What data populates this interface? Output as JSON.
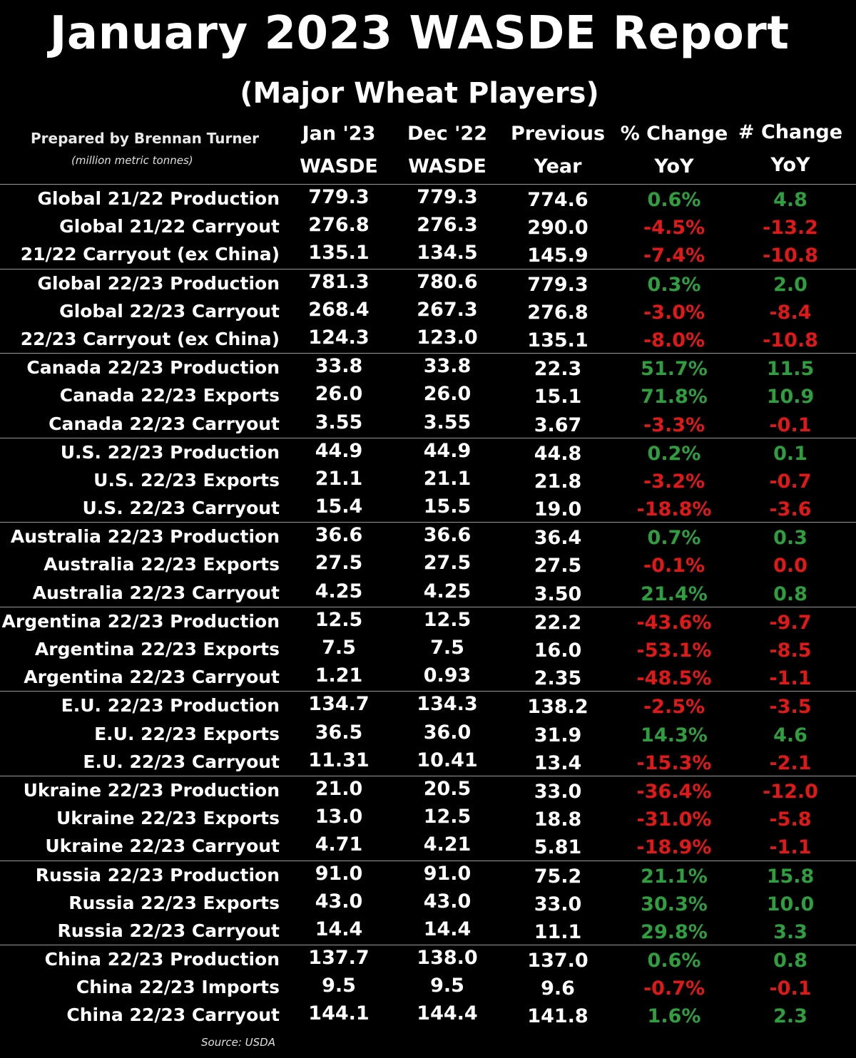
{
  "title": "January 2023 WASDE Report",
  "subtitle": "(Major Wheat Players)",
  "prepared_by": "Prepared by Brennan Turner",
  "units": "(million metric tonnes)",
  "columns": [
    {
      "line1": "Jan '23",
      "line2": "WASDE"
    },
    {
      "line1": "Dec '22",
      "line2": "WASDE"
    },
    {
      "line1": "Previous",
      "line2": "Year"
    },
    {
      "line1": "% Change",
      "line2": "YoY"
    },
    {
      "line1": "# Change",
      "line2": "YoY"
    }
  ],
  "colors": {
    "positive": "#2e9e3e",
    "negative": "#e01818"
  },
  "groups": [
    {
      "rows": [
        {
          "label": "Global 21/22 Production",
          "jan": "779.3",
          "dec": "779.3",
          "prev": "774.6",
          "pct": "0.6%",
          "num": "4.8"
        },
        {
          "label": "Global 21/22 Carryout",
          "jan": "276.8",
          "dec": "276.3",
          "prev": "290.0",
          "pct": "-4.5%",
          "num": "-13.2"
        },
        {
          "label": "21/22 Carryout (ex China)",
          "jan": "135.1",
          "dec": "134.5",
          "prev": "145.9",
          "pct": "-7.4%",
          "num": "-10.8"
        }
      ]
    },
    {
      "rows": [
        {
          "label": "Global 22/23 Production",
          "jan": "781.3",
          "dec": "780.6",
          "prev": "779.3",
          "pct": "0.3%",
          "num": "2.0"
        },
        {
          "label": "Global 22/23 Carryout",
          "jan": "268.4",
          "dec": "267.3",
          "prev": "276.8",
          "pct": "-3.0%",
          "num": "-8.4"
        },
        {
          "label": "22/23 Carryout (ex China)",
          "jan": "124.3",
          "dec": "123.0",
          "prev": "135.1",
          "pct": "-8.0%",
          "num": "-10.8"
        }
      ]
    },
    {
      "rows": [
        {
          "label": "Canada 22/23 Production",
          "jan": "33.8",
          "dec": "33.8",
          "prev": "22.3",
          "pct": "51.7%",
          "num": "11.5"
        },
        {
          "label": "Canada 22/23 Exports",
          "jan": "26.0",
          "dec": "26.0",
          "prev": "15.1",
          "pct": "71.8%",
          "num": "10.9"
        },
        {
          "label": "Canada 22/23 Carryout",
          "jan": "3.55",
          "dec": "3.55",
          "prev": "3.67",
          "pct": "-3.3%",
          "num": "-0.1"
        }
      ]
    },
    {
      "rows": [
        {
          "label": "U.S. 22/23 Production",
          "jan": "44.9",
          "dec": "44.9",
          "prev": "44.8",
          "pct": "0.2%",
          "num": "0.1"
        },
        {
          "label": "U.S. 22/23 Exports",
          "jan": "21.1",
          "dec": "21.1",
          "prev": "21.8",
          "pct": "-3.2%",
          "num": "-0.7"
        },
        {
          "label": "U.S. 22/23 Carryout",
          "jan": "15.4",
          "dec": "15.5",
          "prev": "19.0",
          "pct": "-18.8%",
          "num": "-3.6"
        }
      ]
    },
    {
      "rows": [
        {
          "label": "Australia 22/23 Production",
          "jan": "36.6",
          "dec": "36.6",
          "prev": "36.4",
          "pct": "0.7%",
          "num": "0.3"
        },
        {
          "label": "Australia 22/23 Exports",
          "jan": "27.5",
          "dec": "27.5",
          "prev": "27.5",
          "pct": "-0.1%",
          "num": "0.0",
          "num_sign": "neg"
        },
        {
          "label": "Australia 22/23 Carryout",
          "jan": "4.25",
          "dec": "4.25",
          "prev": "3.50",
          "pct": "21.4%",
          "num": "0.8"
        }
      ]
    },
    {
      "rows": [
        {
          "label": "Argentina 22/23 Production",
          "jan": "12.5",
          "dec": "12.5",
          "prev": "22.2",
          "pct": "-43.6%",
          "num": "-9.7"
        },
        {
          "label": "Argentina 22/23 Exports",
          "jan": "7.5",
          "dec": "7.5",
          "prev": "16.0",
          "pct": "-53.1%",
          "num": "-8.5"
        },
        {
          "label": "Argentina 22/23 Carryout",
          "jan": "1.21",
          "dec": "0.93",
          "prev": "2.35",
          "pct": "-48.5%",
          "num": "-1.1"
        }
      ]
    },
    {
      "rows": [
        {
          "label": "E.U. 22/23 Production",
          "jan": "134.7",
          "dec": "134.3",
          "prev": "138.2",
          "pct": "-2.5%",
          "num": "-3.5"
        },
        {
          "label": "E.U. 22/23 Exports",
          "jan": "36.5",
          "dec": "36.0",
          "prev": "31.9",
          "pct": "14.3%",
          "num": "4.6"
        },
        {
          "label": "E.U. 22/23 Carryout",
          "jan": "11.31",
          "dec": "10.41",
          "prev": "13.4",
          "pct": "-15.3%",
          "num": "-2.1"
        }
      ]
    },
    {
      "rows": [
        {
          "label": "Ukraine 22/23 Production",
          "jan": "21.0",
          "dec": "20.5",
          "prev": "33.0",
          "pct": "-36.4%",
          "num": "-12.0"
        },
        {
          "label": "Ukraine 22/23 Exports",
          "jan": "13.0",
          "dec": "12.5",
          "prev": "18.8",
          "pct": "-31.0%",
          "num": "-5.8"
        },
        {
          "label": "Ukraine 22/23 Carryout",
          "jan": "4.71",
          "dec": "4.21",
          "prev": "5.81",
          "pct": "-18.9%",
          "num": "-1.1"
        }
      ]
    },
    {
      "rows": [
        {
          "label": "Russia 22/23 Production",
          "jan": "91.0",
          "dec": "91.0",
          "prev": "75.2",
          "pct": "21.1%",
          "num": "15.8"
        },
        {
          "label": "Russia 22/23 Exports",
          "jan": "43.0",
          "dec": "43.0",
          "prev": "33.0",
          "pct": "30.3%",
          "num": "10.0"
        },
        {
          "label": "Russia 22/23 Carryout",
          "jan": "14.4",
          "dec": "14.4",
          "prev": "11.1",
          "pct": "29.8%",
          "num": "3.3"
        }
      ]
    },
    {
      "rows": [
        {
          "label": "China 22/23 Production",
          "jan": "137.7",
          "dec": "138.0",
          "prev": "137.0",
          "pct": "0.6%",
          "num": "0.8"
        },
        {
          "label": "China 22/23 Imports",
          "jan": "9.5",
          "dec": "9.5",
          "prev": "9.6",
          "pct": "-0.7%",
          "num": "-0.1"
        },
        {
          "label": "China 22/23 Carryout",
          "jan": "144.1",
          "dec": "144.4",
          "prev": "141.8",
          "pct": "1.6%",
          "num": "2.3"
        }
      ]
    }
  ],
  "source": "Source: USDA"
}
